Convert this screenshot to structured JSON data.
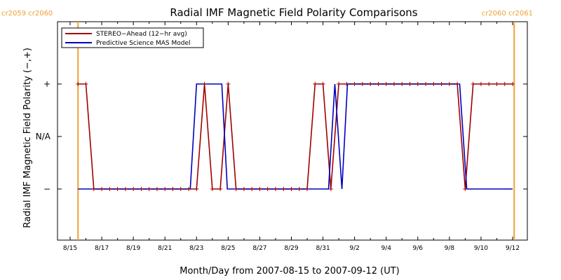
{
  "chart_data": {
    "type": "line",
    "title": "Radial IMF Magnetic Field Polarity Comparisons",
    "xlabel": "Month/Day from 2007-08-15 to 2007-09-12 (UT)",
    "ylabel": "Radial IMF Magnetic Field Polarity (−,+)",
    "xlim": [
      0,
      28
    ],
    "ylim": [
      -2,
      2
    ],
    "x_ticks": [
      {
        "x": 0,
        "label": "8/15"
      },
      {
        "x": 2,
        "label": "8/17"
      },
      {
        "x": 4,
        "label": "8/19"
      },
      {
        "x": 6,
        "label": "8/21"
      },
      {
        "x": 8,
        "label": "8/23"
      },
      {
        "x": 10,
        "label": "8/25"
      },
      {
        "x": 12,
        "label": "8/27"
      },
      {
        "x": 14,
        "label": "8/29"
      },
      {
        "x": 16,
        "label": "8/31"
      },
      {
        "x": 18,
        "label": "9/2"
      },
      {
        "x": 20,
        "label": "9/4"
      },
      {
        "x": 22,
        "label": "9/6"
      },
      {
        "x": 24,
        "label": "9/8"
      },
      {
        "x": 26,
        "label": "9/10"
      },
      {
        "x": 28,
        "label": "9/12"
      }
    ],
    "y_ticks": [
      {
        "y": 1,
        "label": "+"
      },
      {
        "y": 0,
        "label": "N/A"
      },
      {
        "y": -1,
        "label": "−"
      }
    ],
    "carrington_lines": [
      {
        "x": 0.5,
        "label": "cr2059 cr2060",
        "anchor": "left"
      },
      {
        "x": 28.1,
        "label": "cr2060 cr2061",
        "anchor": "right"
      }
    ],
    "legend_position": "top-left",
    "series": [
      {
        "name": "STEREO−Ahead (12−hr avg)",
        "color": "#a00000",
        "markers": true,
        "x": [
          0.5,
          1.0,
          1.5,
          2.0,
          2.5,
          3.0,
          3.5,
          4.0,
          4.5,
          5.0,
          5.5,
          6.0,
          6.5,
          7.0,
          7.5,
          8.0,
          8.5,
          9.0,
          9.5,
          10.0,
          10.5,
          11.0,
          11.5,
          12.0,
          12.5,
          13.0,
          13.5,
          14.0,
          14.5,
          15.0,
          15.5,
          16.0,
          16.5,
          17.0,
          17.5,
          18.0,
          18.5,
          19.0,
          19.5,
          20.0,
          20.5,
          21.0,
          21.5,
          22.0,
          22.5,
          23.0,
          23.5,
          24.0,
          24.5,
          25.0,
          25.5,
          26.0,
          26.5,
          27.0,
          27.5,
          28.0
        ],
        "y": [
          1,
          1,
          -1,
          -1,
          -1,
          -1,
          -1,
          -1,
          -1,
          -1,
          -1,
          -1,
          -1,
          -1,
          -1,
          -1,
          1,
          -1,
          -1,
          1,
          -1,
          -1,
          -1,
          -1,
          -1,
          -1,
          -1,
          -1,
          -1,
          -1,
          1,
          1,
          -1,
          1,
          1,
          1,
          1,
          1,
          1,
          1,
          1,
          1,
          1,
          1,
          1,
          1,
          1,
          1,
          1,
          -1,
          1,
          1,
          1,
          1,
          1,
          1
        ]
      },
      {
        "name": "Predictive Science MAS Model",
        "color": "#0000c0",
        "markers": false,
        "x": [
          0.5,
          7.6,
          8.0,
          9.6,
          9.95,
          16.35,
          16.75,
          17.2,
          17.55,
          24.65,
          25.1,
          28.0
        ],
        "y": [
          -1,
          -1,
          1,
          1,
          -1,
          -1,
          1,
          -1,
          1,
          1,
          -1,
          -1
        ]
      }
    ]
  }
}
